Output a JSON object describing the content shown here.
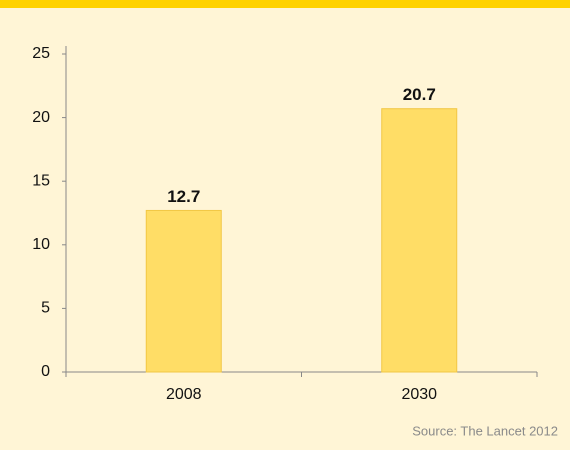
{
  "chart_data": {
    "type": "bar",
    "categories": [
      "2008",
      "2030"
    ],
    "values": [
      12.7,
      20.7
    ],
    "color": "#ffdd66",
    "edge_color": "#f2c744",
    "ylim": [
      0,
      25
    ],
    "yticks": [
      0,
      5,
      10,
      15,
      20,
      25
    ],
    "grid": false,
    "source": "Source: The Lancet 2012"
  }
}
